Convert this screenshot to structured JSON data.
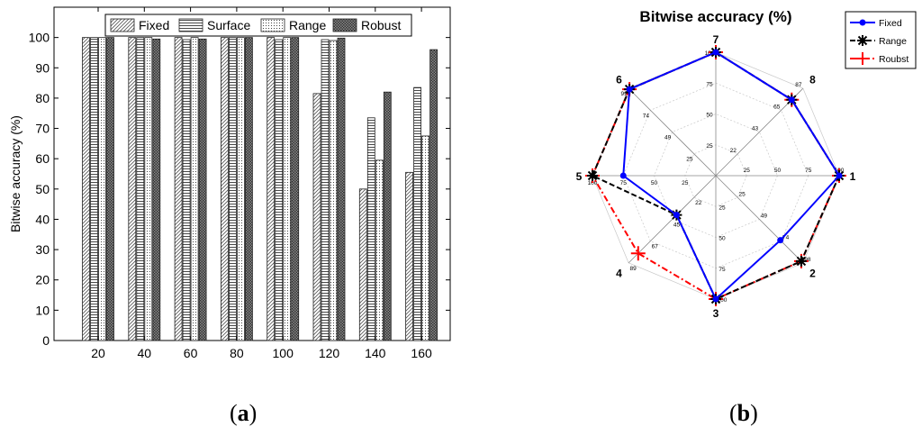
{
  "captions": {
    "a": "a",
    "b": "b"
  },
  "chart_data": [
    {
      "type": "bar",
      "title": "",
      "xlabel": "",
      "ylabel": "Bitwise accuracy (%)",
      "ylim": [
        0,
        110
      ],
      "yticks": [
        0,
        10,
        20,
        30,
        40,
        50,
        60,
        70,
        80,
        90,
        100
      ],
      "categories": [
        "20",
        "40",
        "60",
        "80",
        "100",
        "120",
        "140",
        "160"
      ],
      "legend_position": "top",
      "grid": false,
      "series": [
        {
          "name": "Fixed",
          "pattern": "diagonal",
          "values": [
            100,
            100,
            100,
            100,
            100,
            81.5,
            50,
            55.5
          ]
        },
        {
          "name": "Surface",
          "pattern": "horizontal",
          "values": [
            100,
            100,
            99.3,
            100,
            99.3,
            99.3,
            73.5,
            83.5
          ]
        },
        {
          "name": "Range",
          "pattern": "dotted",
          "values": [
            100,
            100,
            100,
            100,
            100,
            99,
            59.5,
            67.5
          ]
        },
        {
          "name": "Robust",
          "pattern": "crosshatch",
          "values": [
            100,
            99.5,
            99.5,
            100,
            100,
            99.8,
            82,
            96
          ]
        }
      ]
    },
    {
      "type": "radar",
      "title": "Bitwise accuracy (%)",
      "axes": [
        "1",
        "2",
        "3",
        "4",
        "5",
        "6",
        "7",
        "8"
      ],
      "angles_deg": [
        0,
        -45,
        -90,
        -135,
        180,
        135,
        90,
        45
      ],
      "rmax": 100,
      "axis_tick_labels": [
        [
          "100",
          "75",
          "50",
          "25"
        ],
        [
          "98",
          "74",
          "49",
          "25"
        ],
        [
          "100",
          "75",
          "50",
          "25"
        ],
        [
          "89",
          "67",
          "45",
          "22"
        ],
        [
          "100",
          "75",
          "50",
          "25"
        ],
        [
          "99",
          "74",
          "49",
          "25"
        ],
        [
          "100",
          "75",
          "50",
          "25"
        ],
        [
          "87",
          "65",
          "43",
          "22"
        ]
      ],
      "legend_position": "top-right",
      "series": [
        {
          "name": "Fixed",
          "color": "#0000ff",
          "style": "solid",
          "marker": "dot",
          "values": [
            100,
            74,
            100,
            45,
            75,
            99,
            100,
            87
          ]
        },
        {
          "name": "Range",
          "color": "#000000",
          "style": "dashed",
          "marker": "star",
          "values": [
            100,
            98,
            100,
            45,
            100,
            99,
            100,
            87
          ]
        },
        {
          "name": "Roubst",
          "color": "#ff0000",
          "style": "dashdot",
          "marker": "plus",
          "values": [
            100,
            98,
            100,
            89,
            100,
            99,
            100,
            87
          ]
        }
      ]
    }
  ]
}
